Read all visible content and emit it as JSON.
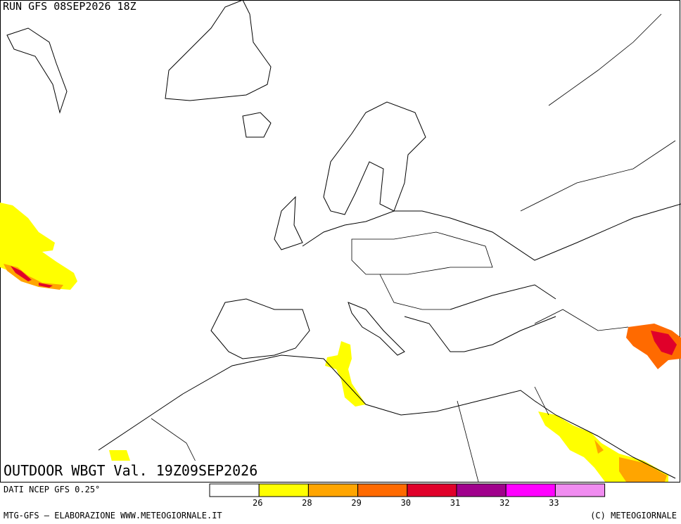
{
  "header": {
    "run": "RUN GFS 08SEP2026 18Z"
  },
  "map": {
    "title": "OUTDOOR WBGT Val. 19Z09SEP2026"
  },
  "legend": {
    "source": "DATI NCEP GFS 0.25°",
    "colors": [
      "#ffffff",
      "#ffff00",
      "#ffa500",
      "#ff6a00",
      "#e0002a",
      "#a0008c",
      "#ff00ff",
      "#f08cf0"
    ],
    "labels": [
      26,
      28,
      29,
      30,
      31,
      32,
      33
    ]
  },
  "footer": {
    "left": "MTG-GFS — ELABORAZIONE WWW.METEOGIORNALE.IT",
    "right": "(C) METEOGIORNALE"
  }
}
